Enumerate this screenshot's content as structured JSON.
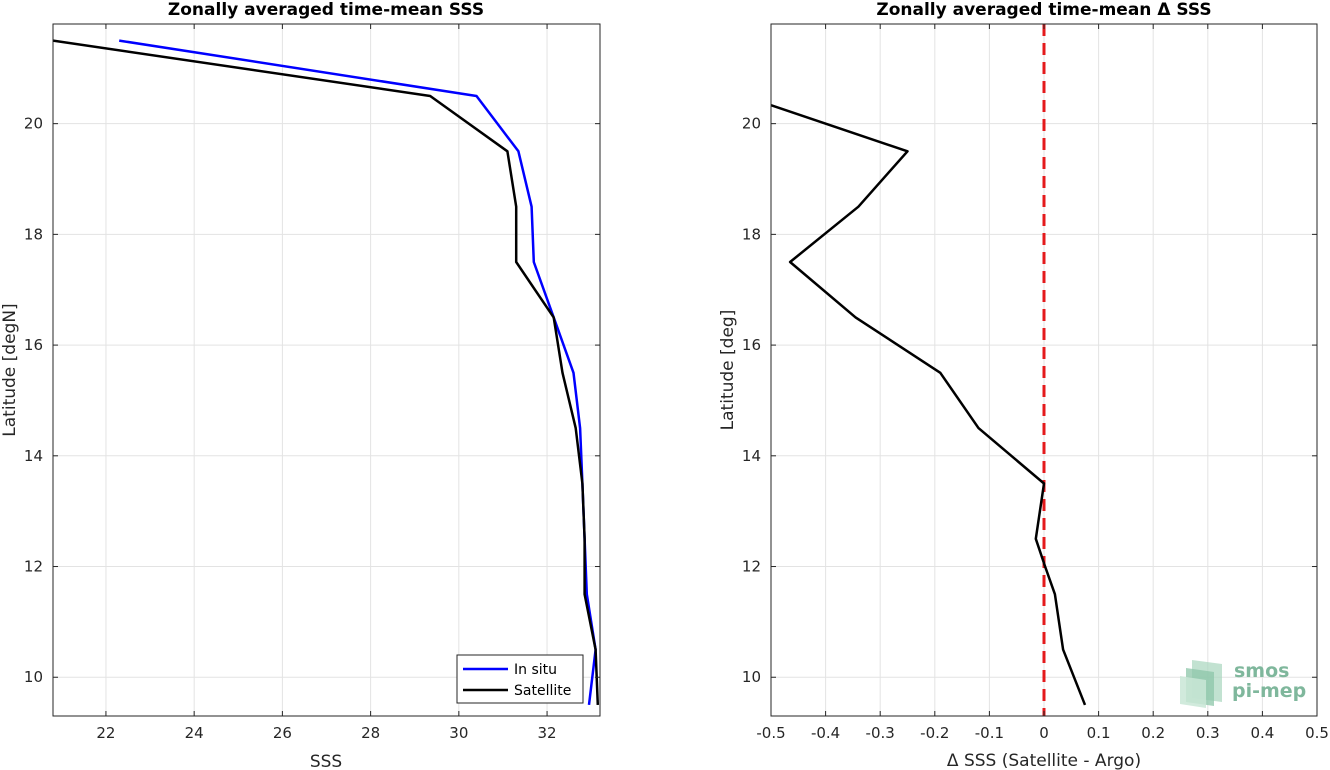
{
  "chart_data": [
    {
      "type": "line",
      "title": "Zonally averaged time-mean SSS",
      "xlabel": "SSS",
      "ylabel": "Latitude [degN]",
      "xlim": [
        20.8,
        33.2
      ],
      "ylim": [
        9.3,
        21.8
      ],
      "xticks": [
        22,
        24,
        26,
        28,
        30,
        32
      ],
      "yticks": [
        10,
        12,
        14,
        16,
        18,
        20
      ],
      "grid": true,
      "legend_position": "bottom-right",
      "series": [
        {
          "name": "In situ",
          "color": "#0000ff",
          "x": [
            22.3,
            30.4,
            31.35,
            31.65,
            31.7,
            32.15,
            32.6,
            32.75,
            32.8,
            32.85,
            32.9,
            33.1,
            32.95
          ],
          "y": [
            21.5,
            20.5,
            19.5,
            18.5,
            17.5,
            16.5,
            15.5,
            14.5,
            13.5,
            12.5,
            11.5,
            10.5,
            9.5
          ]
        },
        {
          "name": "Satellite",
          "color": "#000000",
          "x": [
            20.8,
            29.35,
            31.1,
            31.3,
            31.3,
            32.15,
            32.35,
            32.65,
            32.8,
            32.85,
            32.85,
            33.1,
            33.15
          ],
          "y": [
            21.5,
            20.5,
            19.5,
            18.5,
            17.5,
            16.5,
            15.5,
            14.5,
            13.5,
            12.5,
            11.5,
            10.5,
            9.5
          ]
        }
      ]
    },
    {
      "type": "line",
      "title": "Zonally averaged time-mean Δ SSS",
      "xlabel": "Δ SSS (Satellite - Argo)",
      "ylabel": "Latitude [deg]",
      "xlim": [
        -0.5,
        0.5
      ],
      "ylim": [
        9.3,
        21.8
      ],
      "xticks": [
        "-0.5",
        "-0.4",
        "-0.3",
        "-0.2",
        "-0.1",
        "0",
        "0.1",
        "0.2",
        "0.3",
        "0.4",
        "0.5"
      ],
      "yticks": [
        10,
        12,
        14,
        16,
        18,
        20
      ],
      "grid": true,
      "reference_line": {
        "x": 0,
        "color": "#e41a1c",
        "style": "dashed"
      },
      "series": [
        {
          "color": "#000000",
          "x": [
            -0.55,
            -0.25,
            -0.34,
            -0.465,
            -0.345,
            -0.19,
            -0.12,
            0.0,
            -0.015,
            0.002,
            0.02,
            0.035,
            0.075
          ],
          "y": [
            20.5,
            19.5,
            18.5,
            17.5,
            16.5,
            15.5,
            14.5,
            13.5,
            12.5,
            12.0,
            11.5,
            10.5,
            9.5
          ]
        }
      ]
    }
  ],
  "logo": {
    "line1": "smos",
    "line2": "pi-mep",
    "color": "#7fb79c"
  }
}
